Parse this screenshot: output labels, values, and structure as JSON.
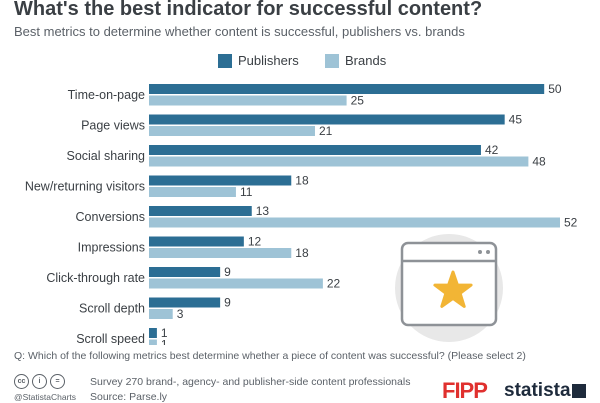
{
  "title": "What's the best indicator for successful content?",
  "subtitle": "Best metrics to determine whether content is successful, publishers vs. brands",
  "colors": {
    "publishers": "#2c6e94",
    "brands": "#9ec3d6"
  },
  "chart_data": {
    "type": "bar",
    "orientation": "horizontal",
    "categories": [
      "Time-on-page",
      "Page views",
      "Social sharing",
      "New/returning visitors",
      "Conversions",
      "Impressions",
      "Click-through rate",
      "Scroll depth",
      "Scroll speed"
    ],
    "series": [
      {
        "name": "Publishers",
        "values": [
          50,
          45,
          42,
          18,
          13,
          12,
          9,
          9,
          1
        ]
      },
      {
        "name": "Brands",
        "values": [
          25,
          21,
          48,
          11,
          52,
          18,
          22,
          3,
          1
        ]
      }
    ],
    "xlim": [
      0,
      52
    ],
    "legend": "top-center",
    "grid": false,
    "data_labels": true
  },
  "footer": {
    "question": "Q: Which of the following metrics best determine whether a piece of content was successful? (Please select 2)",
    "survey": "Survey 270 brand-, agency- and publisher-side content professionals",
    "source": "Source: Parse.ly",
    "handle": "@StatistaCharts",
    "cc_icons": [
      "cc",
      "i",
      "="
    ]
  },
  "logos": {
    "fipp": "FIPP",
    "statista": "statista"
  },
  "illustration": {
    "icon": "browser-window-star-icon"
  }
}
